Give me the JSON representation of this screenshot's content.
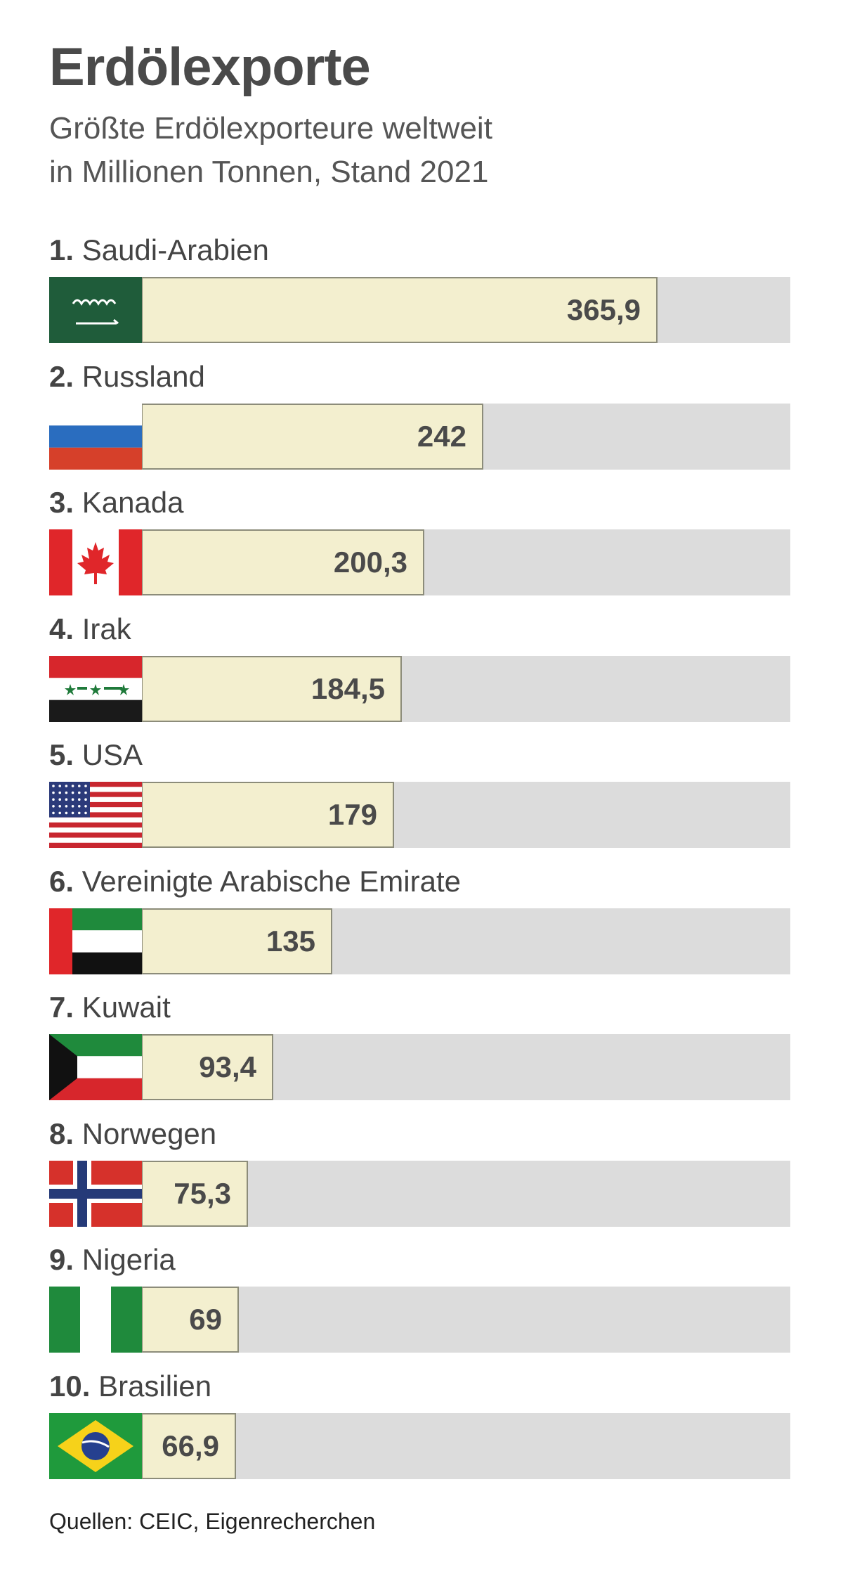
{
  "chart_data": {
    "type": "bar",
    "title": "Erdölexporte",
    "subtitle_lines": [
      "Größte Erdölexporteure weltweit",
      "in Millionen Tonnen, Stand 2021"
    ],
    "categories": [
      "Saudi-Arabien",
      "Russland",
      "Kanada",
      "Irak",
      "USA",
      "Vereinigte Arabische Emirate",
      "Kuwait",
      "Norwegen",
      "Nigeria",
      "Brasilien"
    ],
    "ranks": [
      "1.",
      "2.",
      "3.",
      "4.",
      "5.",
      "6.",
      "7.",
      "8.",
      "9.",
      "10."
    ],
    "values": [
      365.9,
      242,
      200.3,
      184.5,
      179,
      135,
      93.4,
      75.3,
      69,
      66.9
    ],
    "value_labels": [
      "365,9",
      "242",
      "200,3",
      "184,5",
      "179",
      "135",
      "93,4",
      "75,3",
      "69",
      "66,9"
    ],
    "flag_icons": [
      "saudi-arabia-flag-icon",
      "russia-flag-icon",
      "canada-flag-icon",
      "iraq-flag-icon",
      "usa-flag-icon",
      "uae-flag-icon",
      "kuwait-flag-icon",
      "norway-flag-icon",
      "nigeria-flag-icon",
      "brazil-flag-icon"
    ],
    "xlim": [
      0,
      460
    ],
    "orientation": "horizontal",
    "grid": false,
    "legend": "none",
    "colors": {
      "bar_fill": "#f3efcf",
      "bar_border": "#8c8c7a",
      "track": "#dcdcdc"
    }
  },
  "source": "Quellen: CEIC, Eigenrecherchen"
}
